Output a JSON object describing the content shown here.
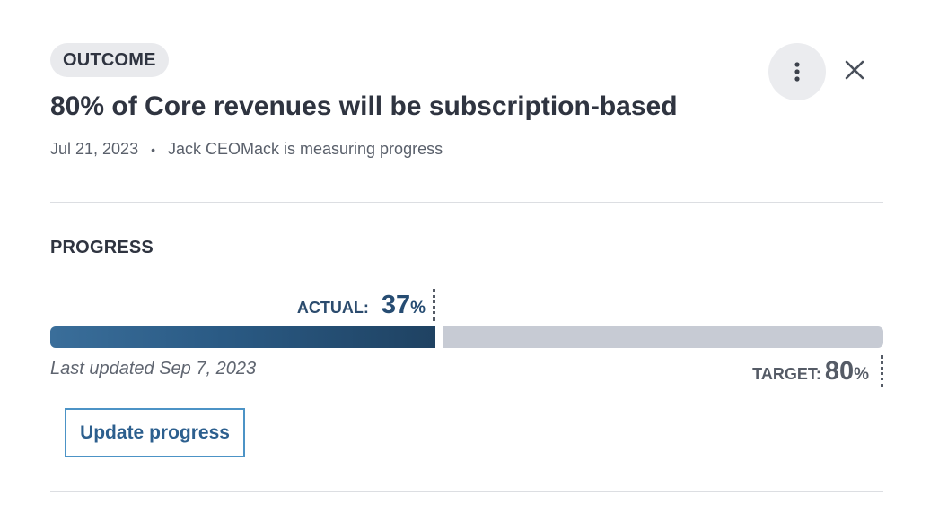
{
  "header": {
    "badge": "OUTCOME",
    "title": "80% of Core revenues will be subscription-based",
    "date": "Jul 21, 2023",
    "separator": "•",
    "measurer": "Jack CEOMack is measuring progress",
    "more_icon": "more-vertical-icon",
    "close_icon": "close-icon"
  },
  "progress": {
    "heading": "PROGRESS",
    "actual_label": "ACTUAL:",
    "actual_value": "37",
    "actual_percent_sign": "%",
    "actual_fraction": 0.37,
    "target_label": "TARGET:",
    "target_value": "80",
    "target_percent_sign": "%",
    "last_updated": "Last updated Sep 7, 2023",
    "update_button": "Update progress"
  },
  "colors": {
    "bar_fill": "#2a5a84",
    "bar_track": "#c7cbd4",
    "button_border": "#4c93c6",
    "button_text": "#2c5f8e"
  }
}
